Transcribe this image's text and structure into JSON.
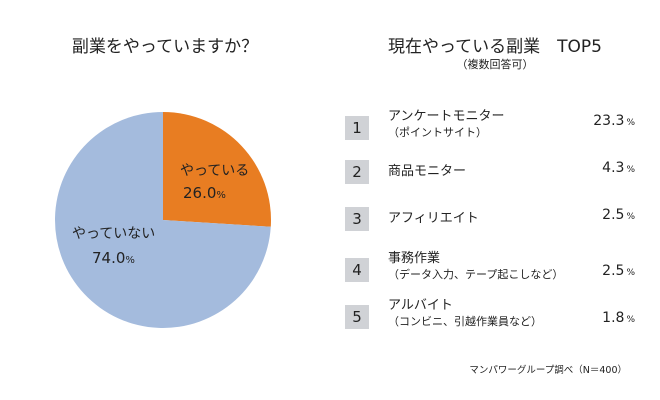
{
  "colors": {
    "pie": [
      "#e87d22",
      "#a4bbdd"
    ]
  },
  "chart_data": [
    {
      "type": "pie",
      "title": "副業をやっていますか？",
      "start": "12 o'clock clockwise",
      "slices": [
        {
          "label": "やっている",
          "value": 26.0,
          "display": "26.0",
          "unit": "%"
        },
        {
          "label": "やっていない",
          "value": 74.0,
          "display": "74.0",
          "unit": "%"
        }
      ]
    },
    {
      "type": "table",
      "title": "現在やっている副業　TOP5",
      "subtitle": "（複数回答可）",
      "rows": [
        {
          "rank": "1",
          "label": "アンケートモニター",
          "sub": "（ポイントサイト）",
          "value": "23.3",
          "unit": "%"
        },
        {
          "rank": "2",
          "label": "商品モニター",
          "sub": "",
          "value": "4.3",
          "unit": "%"
        },
        {
          "rank": "3",
          "label": "アフィリエイト",
          "sub": "",
          "value": "2.5",
          "unit": "%"
        },
        {
          "rank": "4",
          "label": "事務作業",
          "sub": "（データ入力、テープ起こしなど）",
          "value": "2.5",
          "unit": "%"
        },
        {
          "rank": "5",
          "label": "アルバイト",
          "sub": "（コンビニ、引越作業員など）",
          "value": "1.8",
          "unit": "%"
        }
      ],
      "source": "マンパワーグループ調べ（N＝400）"
    }
  ]
}
